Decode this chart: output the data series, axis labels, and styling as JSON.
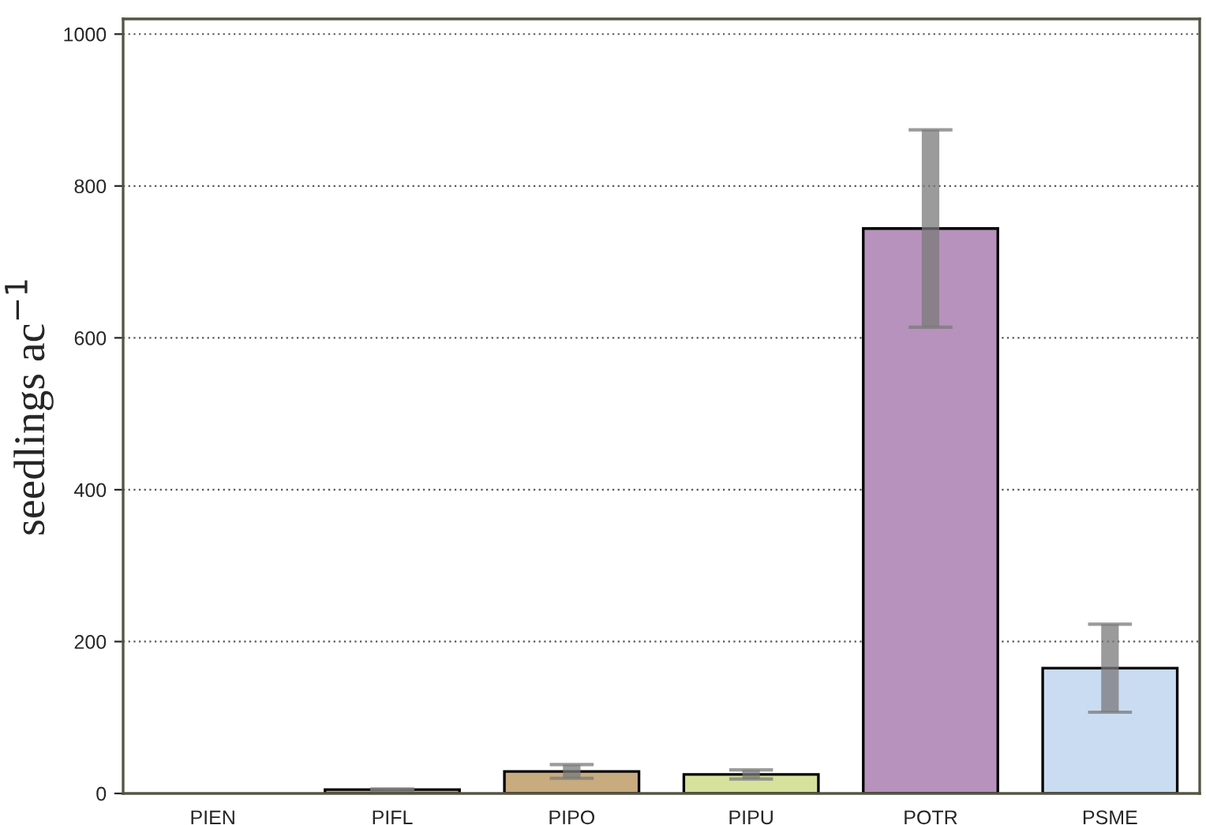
{
  "chart_data": {
    "type": "bar",
    "ylabel": "seedlings ac$^{−1}$",
    "categories": [
      "PIEN",
      "PIFL",
      "PIPO",
      "PIPU",
      "POTR",
      "PSME"
    ],
    "values": [
      0,
      5,
      29,
      25,
      744,
      165
    ],
    "errors": [
      null,
      1,
      9,
      6,
      130,
      58
    ],
    "colors": [
      "#c8aa7a",
      "#c8aa7a",
      "#c8ab7e",
      "#d6e29c",
      "#b792bc",
      "#c9dcf2"
    ],
    "ylim": [
      0,
      1020
    ],
    "yticks": [
      0,
      200,
      400,
      600,
      800,
      1000
    ],
    "grid": "y"
  }
}
